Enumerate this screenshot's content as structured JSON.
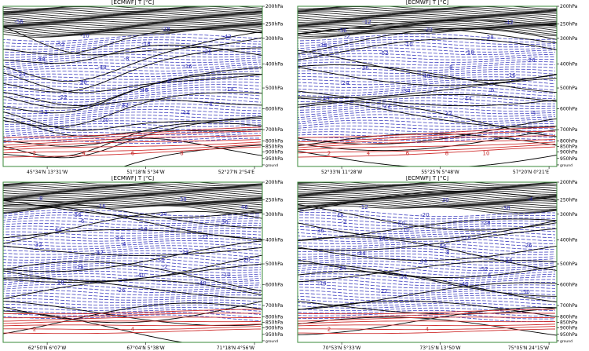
{
  "chart_data": [
    {
      "type": "contour",
      "title": "[ECMWF] T [°C]",
      "pressure_levels": [
        "200hPa",
        "250hPa",
        "300hPa",
        "400hPa",
        "500hPa",
        "600hPa",
        "700hPa",
        "800hPa",
        "850hPa",
        "900hPa",
        "950hPa",
        "ground"
      ],
      "x_labels": [
        "45°34'N 13°31'W",
        "51°18'N 5°34'W",
        "52°27'N 2°54'E"
      ],
      "isotherm_labels_negative": [
        "-56",
        "-52",
        "-48",
        "-46",
        "-44",
        "-42",
        "-38",
        "-36",
        "-32",
        "-28",
        "-26",
        "-24",
        "-22",
        "-20",
        "-18",
        "-16",
        "-14",
        "-12",
        "-10",
        "-8",
        "-6",
        "-4"
      ],
      "isotherm_labels_positive": [
        "2",
        "4",
        "6",
        "8"
      ]
    },
    {
      "type": "contour",
      "title": "[ECMWF] T [°C]",
      "pressure_levels": [
        "200hPa",
        "250hPa",
        "300hPa",
        "400hPa",
        "500hPa",
        "600hPa",
        "700hPa",
        "800hPa",
        "850hPa",
        "900hPa",
        "950hPa",
        "ground"
      ],
      "x_labels": [
        "52°33'N 11°28'W",
        "55°25'N 5°48'W",
        "57°20'N 0°21'E"
      ],
      "isotherm_labels_negative": [
        "-56",
        "-52",
        "-48",
        "-44",
        "-42",
        "-38",
        "-36",
        "-34",
        "-32",
        "-28",
        "-26",
        "-24",
        "-22",
        "-20",
        "-18",
        "-16",
        "-14",
        "-12",
        "-10",
        "-8",
        "-6",
        "-4",
        "-2"
      ],
      "isotherm_labels_positive": [
        "2",
        "4",
        "6",
        "8",
        "10"
      ]
    },
    {
      "type": "contour",
      "title": "[ECMWF] T [°C]",
      "pressure_levels": [
        "200hPa",
        "250hPa",
        "300hPa",
        "400hPa",
        "500hPa",
        "600hPa",
        "700hPa",
        "800hPa",
        "850hPa",
        "900hPa",
        "950hPa",
        "ground"
      ],
      "x_labels": [
        "62°50'N 6°07'W",
        "67°04'N 5°38'W",
        "71°18'N 4°56'W"
      ],
      "isotherm_labels_negative": [
        "-56",
        "-54",
        "-50",
        "-48",
        "-46",
        "-44",
        "-42",
        "-40",
        "-38",
        "-36",
        "-32",
        "-28",
        "-26",
        "-24",
        "-22",
        "-20",
        "-18",
        "-16",
        "-14",
        "-12",
        "-10",
        "-8",
        "-6",
        "-4",
        "-2"
      ],
      "isotherm_labels_positive": [
        "2",
        "4"
      ]
    },
    {
      "type": "contour",
      "title": "[ECMWF] T [°C]",
      "pressure_levels": [
        "200hPa",
        "250hPa",
        "300hPa",
        "400hPa",
        "500hPa",
        "600hPa",
        "700hPa",
        "800hPa",
        "850hPa",
        "900hPa",
        "950hPa",
        "ground"
      ],
      "x_labels": [
        "70°53'N 5°33'W",
        "73°15'N 13°50'W",
        "75°05'N 24°15'W"
      ],
      "isotherm_labels_negative": [
        "-60",
        "-56",
        "-52",
        "-50",
        "-48",
        "-46",
        "-44",
        "-40",
        "-38",
        "-36",
        "-34",
        "-32",
        "-30",
        "-28",
        "-26",
        "-24",
        "-22",
        "-20",
        "-18",
        "-16",
        "-14",
        "-12",
        "-10",
        "-8",
        "-6",
        "-4",
        "-2"
      ],
      "isotherm_labels_positive": [
        "2",
        "4"
      ]
    }
  ],
  "colors": {
    "solid_isotherm": "#000000",
    "dashed_isotherm": "#4040c0",
    "positive_isotherm": "#d03030",
    "frame": "#3a8a3a",
    "top_band": "#222222"
  }
}
